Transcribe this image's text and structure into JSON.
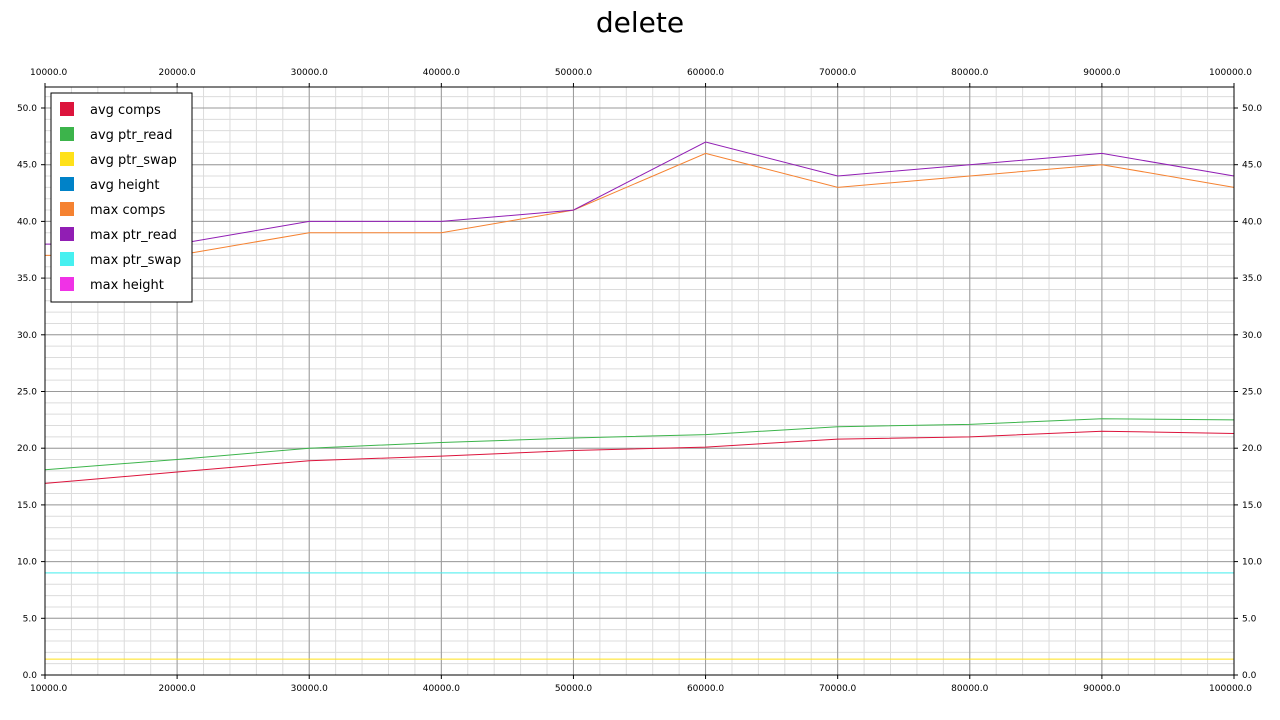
{
  "chart_data": {
    "type": "line",
    "title": "delete",
    "xlabel": "",
    "ylabel": "",
    "xlim": [
      10000,
      100000
    ],
    "ylim": [
      0,
      52
    ],
    "x_ticks": [
      10000,
      20000,
      30000,
      40000,
      50000,
      60000,
      70000,
      80000,
      90000,
      100000
    ],
    "x_tick_labels": [
      "10000.0",
      "20000.0",
      "30000.0",
      "40000.0",
      "50000.0",
      "60000.0",
      "70000.0",
      "80000.0",
      "90000.0",
      "100000.0"
    ],
    "y_ticks": [
      0,
      5,
      10,
      15,
      20,
      25,
      30,
      35,
      40,
      45,
      50
    ],
    "y_tick_labels": [
      "0.0",
      "5.0",
      "10.0",
      "15.0",
      "20.0",
      "25.0",
      "30.0",
      "35.0",
      "40.0",
      "45.0",
      "50.0"
    ],
    "grid": true,
    "minor_grid": true,
    "legend_position": "top-left",
    "x": [
      10000,
      20000,
      30000,
      40000,
      50000,
      60000,
      70000,
      80000,
      90000,
      100000
    ],
    "series": [
      {
        "name": "avg comps",
        "color": "#dc143c",
        "values": [
          16.9,
          17.9,
          18.9,
          19.3,
          19.8,
          20.1,
          20.8,
          21.0,
          21.5,
          21.3
        ]
      },
      {
        "name": "avg ptr_read",
        "color": "#3cb44b",
        "values": [
          18.1,
          19.0,
          20.0,
          20.5,
          20.9,
          21.2,
          21.9,
          22.1,
          22.6,
          22.5
        ]
      },
      {
        "name": "avg ptr_swap",
        "color": "#ffe119",
        "values": [
          1.4,
          1.4,
          1.4,
          1.4,
          1.4,
          1.4,
          1.4,
          1.4,
          1.4,
          1.4
        ]
      },
      {
        "name": "avg height",
        "color": "#0082c8",
        "values": [
          0,
          0,
          0,
          0,
          0,
          0,
          0,
          0,
          0,
          0
        ]
      },
      {
        "name": "max comps",
        "color": "#f58231",
        "values": [
          37,
          37,
          39,
          39,
          41,
          46,
          43,
          44,
          45,
          43
        ]
      },
      {
        "name": "max ptr_read",
        "color": "#911eb4",
        "values": [
          38,
          38,
          40,
          40,
          41,
          47,
          44,
          45,
          46,
          44
        ]
      },
      {
        "name": "max ptr_swap",
        "color": "#46f0f0",
        "values": [
          9,
          9,
          9,
          9,
          9,
          9,
          9,
          9,
          9,
          9
        ]
      },
      {
        "name": "max height",
        "color": "#f032e6",
        "values": [
          0,
          0,
          0,
          0,
          0,
          0,
          0,
          0,
          0,
          0
        ]
      }
    ]
  }
}
